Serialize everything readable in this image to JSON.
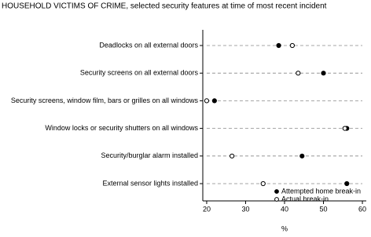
{
  "chart_data": {
    "type": "dot",
    "title": "HOUSEHOLD VICTIMS OF CRIME, selected security features at time of most recent incident",
    "x_label": "%",
    "categories": [
      "Deadlocks on all external doors",
      "Security screens on all external doors",
      "Security screens, window film, bars or grilles on all windows",
      "Window locks or security shutters on all windows",
      "Security/burglar alarm installed",
      "External sensor lights installed"
    ],
    "series": [
      {
        "name": "Attempted home break-in",
        "color": "#000000",
        "marker": "filled",
        "values": [
          38.5,
          50,
          22,
          56,
          44.5,
          56
        ]
      },
      {
        "name": "Actual break-in",
        "color": "#000000",
        "marker": "open",
        "values": [
          42,
          43.5,
          20,
          55.5,
          26.5,
          34.5
        ]
      }
    ],
    "xlim": [
      19,
      61
    ],
    "xticks": [
      20,
      30,
      40,
      50,
      60
    ],
    "legend": "lower right"
  }
}
